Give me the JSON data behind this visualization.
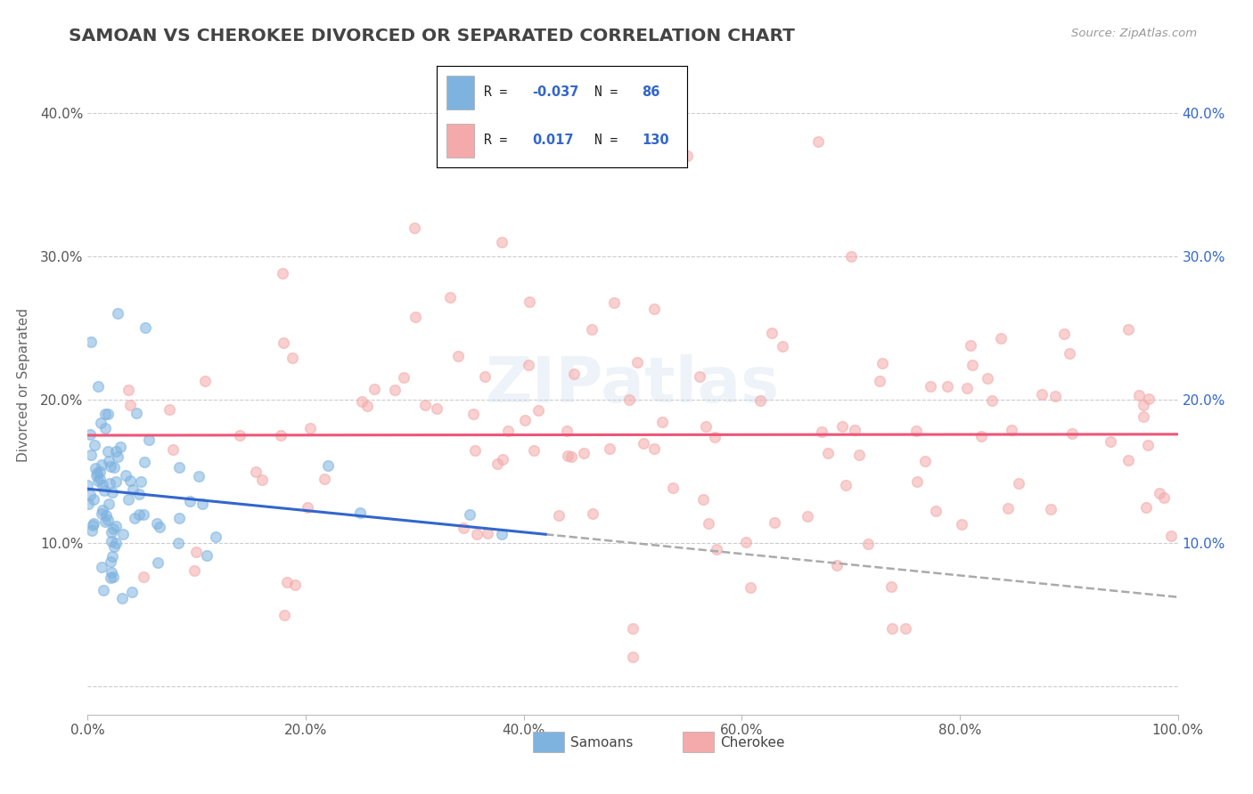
{
  "title": "SAMOAN VS CHEROKEE DIVORCED OR SEPARATED CORRELATION CHART",
  "source_text": "Source: ZipAtlas.com",
  "ylabel": "Divorced or Separated",
  "xlim": [
    0,
    1.0
  ],
  "ylim": [
    -0.02,
    0.44
  ],
  "xticks": [
    0.0,
    0.2,
    0.4,
    0.6,
    0.8,
    1.0
  ],
  "xtick_labels": [
    "0.0%",
    "20.0%",
    "40.0%",
    "60.0%",
    "80.0%",
    "100.0%"
  ],
  "yticks": [
    0.0,
    0.1,
    0.2,
    0.3,
    0.4
  ],
  "ytick_labels": [
    "",
    "10.0%",
    "20.0%",
    "30.0%",
    "40.0%"
  ],
  "samoan_color": "#7EB3E0",
  "cherokee_color": "#F4AAAA",
  "samoan_R": -0.037,
  "samoan_N": 86,
  "cherokee_R": 0.017,
  "cherokee_N": 130,
  "legend_label_samoan": "Samoans",
  "legend_label_cherokee": "Cherokee",
  "watermark": "ZIPatlas",
  "background_color": "#FFFFFF",
  "grid_color": "#CCCCCC",
  "title_color": "#444444",
  "axis_label_color": "#666666",
  "legend_R_color": "#3366CC",
  "blue_line_color": "#3366CC",
  "pink_line_color": "#EE5577",
  "dashed_line_color": "#AAAAAA"
}
